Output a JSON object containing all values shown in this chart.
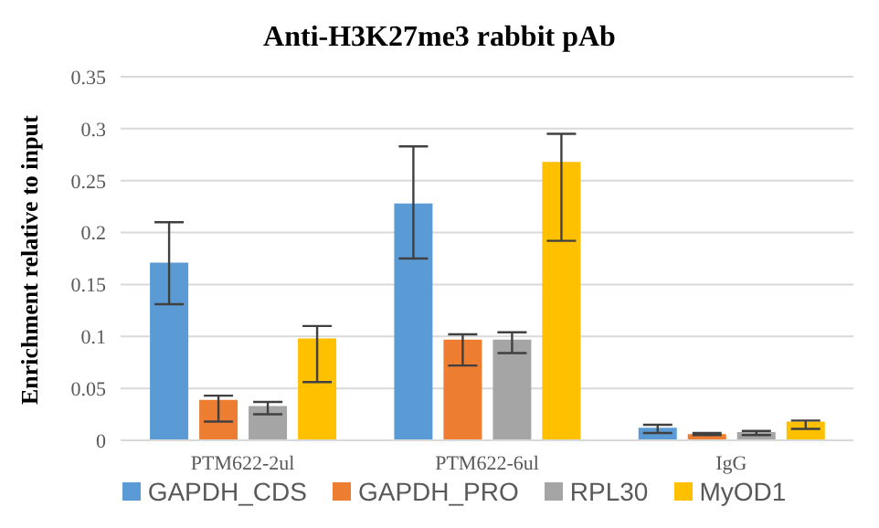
{
  "chart_data": {
    "type": "bar",
    "title": "Anti-H3K27me3 rabbit pAb",
    "ylabel": "Enrichment  relative  to input",
    "categories": [
      "PTM622-2ul",
      "PTM622-6ul",
      "IgG"
    ],
    "series": [
      {
        "name": "GAPDH_CDS",
        "color": "#5b9bd5",
        "values": [
          0.171,
          0.228,
          0.012
        ],
        "errors": [
          [
            0.131,
            0.21
          ],
          [
            0.175,
            0.283
          ],
          [
            0.007,
            0.015
          ]
        ]
      },
      {
        "name": "GAPDH_PRO",
        "color": "#ed7d31",
        "values": [
          0.039,
          0.097,
          0.006
        ],
        "errors": [
          [
            0.018,
            0.043
          ],
          [
            0.072,
            0.102
          ],
          [
            0.005,
            0.007
          ]
        ]
      },
      {
        "name": "RPL30",
        "color": "#a5a5a5",
        "values": [
          0.033,
          0.097,
          0.008
        ],
        "errors": [
          [
            0.025,
            0.037
          ],
          [
            0.084,
            0.104
          ],
          [
            0.005,
            0.009
          ]
        ]
      },
      {
        "name": "MyOD1",
        "color": "#ffc000",
        "values": [
          0.098,
          0.268,
          0.018
        ],
        "errors": [
          [
            0.056,
            0.11
          ],
          [
            0.192,
            0.295
          ],
          [
            0.011,
            0.019
          ]
        ]
      }
    ],
    "ylim": [
      0,
      0.35
    ],
    "yticks": [
      0,
      0.05,
      0.1,
      0.15,
      0.2,
      0.25,
      0.3,
      0.35
    ],
    "grid": "y",
    "legend": "bottom"
  }
}
